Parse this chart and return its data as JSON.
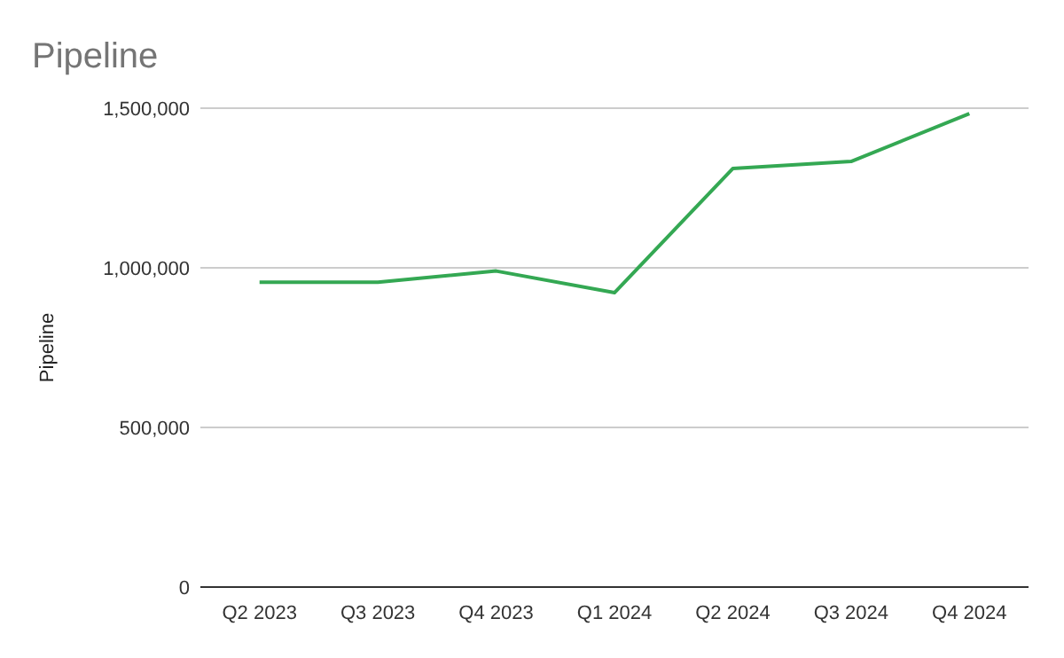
{
  "chart_data": {
    "type": "line",
    "title": "Pipeline",
    "ylabel": "Pipeline",
    "categories": [
      "Q2 2023",
      "Q3 2023",
      "Q4 2023",
      "Q1 2024",
      "Q2 2024",
      "Q3 2024",
      "Q4 2024"
    ],
    "series": [
      {
        "color": "#34a853",
        "values": [
          955000,
          955000,
          990000,
          922000,
          1311000,
          1333000,
          1483000
        ]
      }
    ],
    "ylim": [
      0,
      1500000
    ],
    "yticks": [
      0,
      {
        "value": 500000,
        "label": "500,000"
      },
      {
        "value": 1000000,
        "label": "1,000,000"
      },
      {
        "value": 1500000,
        "label": "1,500,000"
      }
    ],
    "grid": "y",
    "marker": "none",
    "line_style": "solid"
  }
}
